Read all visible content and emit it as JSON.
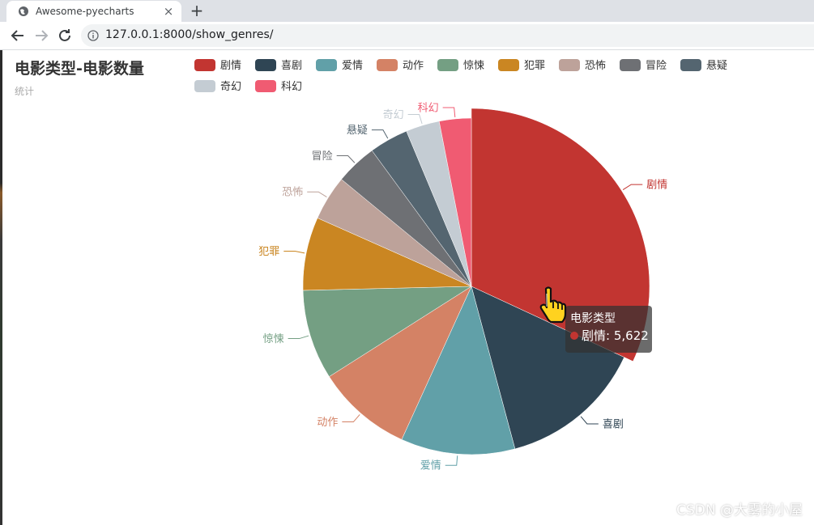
{
  "browser": {
    "tab_title": "Awesome-pyecharts",
    "close_glyph": "×",
    "new_tab_glyph": "+",
    "url": "127.0.0.1:8000/show_genres/",
    "icons": [
      "globe-icon",
      "close-icon",
      "plus-icon",
      "back-arrow-icon",
      "forward-arrow-icon",
      "reload-icon",
      "info-icon"
    ]
  },
  "chart_data": {
    "type": "pie",
    "title": "电影类型-电影数量",
    "subtitle": "统计",
    "series_name": "电影类型",
    "legend_position": "top",
    "categories": [
      "剧情",
      "喜剧",
      "爱情",
      "动作",
      "惊悚",
      "犯罪",
      "恐怖",
      "冒险",
      "悬疑",
      "奇幻",
      "科幻"
    ],
    "values": [
      5622,
      2450,
      1930,
      1620,
      1520,
      1240,
      760,
      700,
      660,
      570,
      540
    ],
    "colors": [
      "#c23531",
      "#2f4554",
      "#61a0a8",
      "#d48265",
      "#749f83",
      "#ca8622",
      "#bda29a",
      "#6e7074",
      "#546570",
      "#c4ccd3",
      "#f05b72"
    ],
    "highlighted": "剧情"
  },
  "tooltip": {
    "title": "电影类型",
    "label": "剧情",
    "value": "5,622"
  },
  "watermark": "CSDN @大雾的小屋"
}
